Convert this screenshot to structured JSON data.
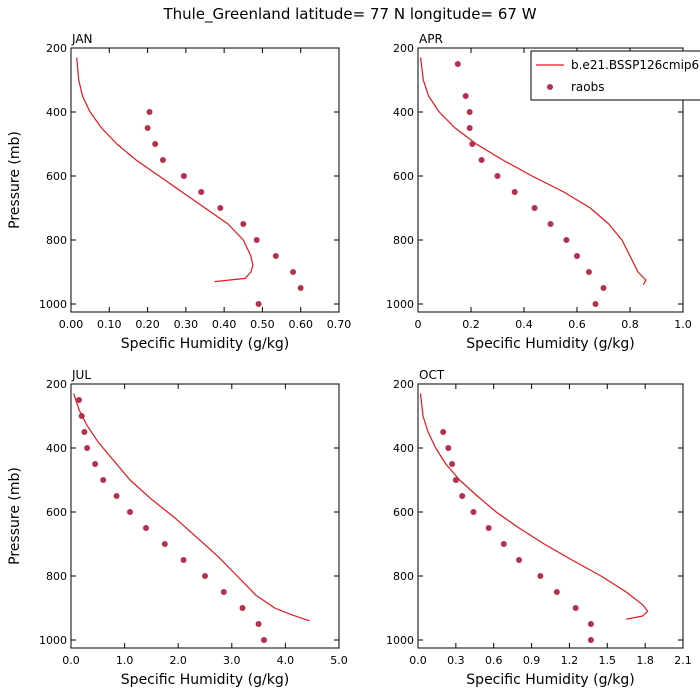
{
  "figure_title": "Thule_Greenland  latitude= 77 N longitude= 67 W",
  "legend": {
    "model_label": "b.e21.BSSP126cmip6",
    "obs_label": "raobs"
  },
  "colors": {
    "model_line": "#e8141c",
    "obs_marker": "#b5304f"
  },
  "chart_data": [
    {
      "type": "line",
      "panel_title": "JAN",
      "xlabel": "Specific Humidity (g/kg)",
      "ylabel": "Pressure (mb)",
      "xlim": [
        0,
        0.7
      ],
      "xticks": [
        0,
        0.1,
        0.2,
        0.3,
        0.4,
        0.5,
        0.6,
        0.7
      ],
      "xtick_labels": [
        "0.00",
        "0.10",
        "0.20",
        "0.30",
        "0.40",
        "0.50",
        "0.60",
        "0.70"
      ],
      "ylim": [
        200,
        1025
      ],
      "yticks": [
        200,
        400,
        600,
        800,
        1000
      ],
      "show_ylabel": true,
      "series": [
        {
          "name": "b.e21.BSSP126cmip6",
          "kind": "line",
          "x": [
            0.015,
            0.02,
            0.03,
            0.05,
            0.08,
            0.12,
            0.17,
            0.23,
            0.29,
            0.35,
            0.41,
            0.45,
            0.47,
            0.475,
            0.47,
            0.455,
            0.375
          ],
          "y": [
            230,
            300,
            350,
            400,
            450,
            500,
            550,
            600,
            650,
            700,
            750,
            800,
            850,
            880,
            900,
            920,
            930
          ]
        },
        {
          "name": "raobs",
          "kind": "points",
          "x": [
            0.205,
            0.2,
            0.22,
            0.24,
            0.295,
            0.34,
            0.39,
            0.45,
            0.485,
            0.535,
            0.58,
            0.6,
            0.49
          ],
          "y": [
            400,
            450,
            500,
            550,
            600,
            650,
            700,
            750,
            800,
            850,
            900,
            950,
            1000
          ]
        }
      ]
    },
    {
      "type": "line",
      "panel_title": "APR",
      "xlabel": "Specific Humidity (g/kg)",
      "ylabel": "",
      "xlim": [
        0,
        1.0
      ],
      "xticks": [
        0,
        0.2,
        0.4,
        0.6,
        0.8,
        1.0
      ],
      "xtick_labels": [
        "0",
        "0.2",
        "0.4",
        "0.6",
        "0.8",
        "1.0"
      ],
      "ylim": [
        200,
        1025
      ],
      "yticks": [
        200,
        400,
        600,
        800,
        1000
      ],
      "show_ylabel": false,
      "has_legend": true,
      "series": [
        {
          "name": "b.e21.BSSP126cmip6",
          "kind": "line",
          "x": [
            0.01,
            0.02,
            0.04,
            0.08,
            0.14,
            0.22,
            0.32,
            0.43,
            0.55,
            0.65,
            0.72,
            0.77,
            0.8,
            0.83,
            0.86,
            0.85
          ],
          "y": [
            230,
            300,
            350,
            400,
            450,
            500,
            550,
            600,
            650,
            700,
            750,
            800,
            850,
            900,
            925,
            940
          ]
        },
        {
          "name": "raobs",
          "kind": "points",
          "x": [
            0.15,
            0.18,
            0.195,
            0.195,
            0.205,
            0.24,
            0.3,
            0.365,
            0.44,
            0.5,
            0.56,
            0.6,
            0.645,
            0.7,
            0.67
          ],
          "y": [
            250,
            350,
            400,
            450,
            500,
            550,
            600,
            650,
            700,
            750,
            800,
            850,
            900,
            950,
            1000
          ]
        }
      ]
    },
    {
      "type": "line",
      "panel_title": "JUL",
      "xlabel": "Specific Humidity (g/kg)",
      "ylabel": "Pressure (mb)",
      "xlim": [
        0,
        5.0
      ],
      "xticks": [
        0,
        1,
        2,
        3,
        4,
        5
      ],
      "xtick_labels": [
        "0.0",
        "1.0",
        "2.0",
        "3.0",
        "4.0",
        "5.0"
      ],
      "ylim": [
        200,
        1025
      ],
      "yticks": [
        200,
        400,
        600,
        800,
        1000
      ],
      "show_ylabel": true,
      "series": [
        {
          "name": "b.e21.BSSP126cmip6",
          "kind": "line",
          "x": [
            0.05,
            0.15,
            0.3,
            0.5,
            0.75,
            1.1,
            1.5,
            1.95,
            2.35,
            2.75,
            3.1,
            3.45,
            3.8,
            4.1,
            4.45
          ],
          "y": [
            230,
            280,
            330,
            380,
            430,
            500,
            560,
            620,
            680,
            740,
            800,
            860,
            900,
            920,
            940
          ]
        },
        {
          "name": "raobs",
          "kind": "points",
          "x": [
            0.15,
            0.2,
            0.25,
            0.3,
            0.45,
            0.6,
            0.85,
            1.1,
            1.4,
            1.75,
            2.1,
            2.5,
            2.85,
            3.2,
            3.5,
            3.6
          ],
          "y": [
            250,
            300,
            350,
            400,
            450,
            500,
            550,
            600,
            650,
            700,
            750,
            800,
            850,
            900,
            950,
            1000
          ]
        }
      ]
    },
    {
      "type": "line",
      "panel_title": "OCT",
      "xlabel": "Specific Humidity (g/kg)",
      "ylabel": "",
      "xlim": [
        0,
        2.1
      ],
      "xticks": [
        0,
        0.3,
        0.6,
        0.9,
        1.2,
        1.5,
        1.8,
        2.1
      ],
      "xtick_labels": [
        "0.0",
        "0.3",
        "0.6",
        "0.9",
        "1.2",
        "1.5",
        "1.8",
        "2.1"
      ],
      "ylim": [
        200,
        1025
      ],
      "yticks": [
        200,
        400,
        600,
        800,
        1000
      ],
      "show_ylabel": false,
      "series": [
        {
          "name": "b.e21.BSSP126cmip6",
          "kind": "line",
          "x": [
            0.02,
            0.04,
            0.08,
            0.14,
            0.22,
            0.33,
            0.47,
            0.62,
            0.8,
            1.0,
            1.22,
            1.45,
            1.65,
            1.78,
            1.82,
            1.78,
            1.65
          ],
          "y": [
            230,
            300,
            350,
            400,
            450,
            500,
            550,
            600,
            650,
            700,
            750,
            800,
            850,
            890,
            910,
            925,
            935
          ]
        },
        {
          "name": "raobs",
          "kind": "points",
          "x": [
            0.2,
            0.24,
            0.27,
            0.3,
            0.35,
            0.44,
            0.56,
            0.68,
            0.8,
            0.97,
            1.1,
            1.25,
            1.37,
            1.37
          ],
          "y": [
            350,
            400,
            450,
            500,
            550,
            600,
            650,
            700,
            750,
            800,
            850,
            900,
            950,
            1000
          ]
        }
      ]
    }
  ]
}
